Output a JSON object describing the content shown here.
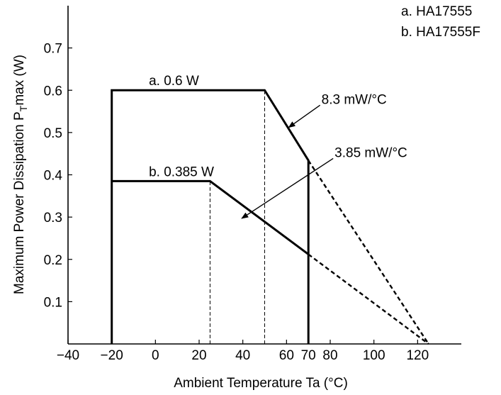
{
  "chart_data": {
    "type": "line",
    "xlabel": "Ambient Temperature  Ta  (°C)",
    "ylabel_main": "Maximum Power Dissipation  P",
    "ylabel_sub": "T",
    "ylabel_tail": "max  (W)",
    "xlim": [
      -40,
      140
    ],
    "ylim": [
      0,
      0.8
    ],
    "x_ticks": [
      -40,
      -20,
      0,
      20,
      40,
      60,
      70,
      80,
      100,
      120
    ],
    "x_tick_labels": [
      "−40",
      "−20",
      "0",
      "20",
      "40",
      "60",
      "70",
      "80",
      "100",
      "120"
    ],
    "y_ticks": [
      0.1,
      0.2,
      0.3,
      0.4,
      0.5,
      0.6,
      0.7
    ],
    "y_tick_labels": [
      "0.1",
      "0.2",
      "0.3",
      "0.4",
      "0.5",
      "0.6",
      "0.7"
    ],
    "grid": false,
    "legend_position": "top-right",
    "legend": [
      "a. HA17555",
      "b. HA17555F"
    ],
    "series": [
      {
        "name": "a. HA17555",
        "points": [
          [
            -20,
            0
          ],
          [
            -20,
            0.6
          ],
          [
            50,
            0.6
          ],
          [
            70,
            0.434
          ],
          [
            70,
            0
          ]
        ],
        "extension": [
          [
            70,
            0.434
          ],
          [
            125,
            0
          ]
        ]
      },
      {
        "name": "b. HA17555F",
        "points": [
          [
            -20,
            0.385
          ],
          [
            25,
            0.385
          ],
          [
            70,
            0.212
          ]
        ],
        "extension": [
          [
            70,
            0.212
          ],
          [
            125,
            0
          ]
        ]
      }
    ],
    "reference_lines": [
      {
        "x": 50,
        "y_from": 0,
        "y_to": 0.6
      },
      {
        "x": 25,
        "y_from": 0,
        "y_to": 0.385
      }
    ],
    "annotations": [
      {
        "text": "a. 0.6 W",
        "x": -3,
        "y": 0.612
      },
      {
        "text": "b. 0.385 W",
        "x": -3,
        "y": 0.397
      },
      {
        "text": "8.3 mW/°C",
        "x": 76,
        "y": 0.568,
        "arrow_to": [
          61,
          0.512
        ]
      },
      {
        "text": "3.85 mW/°C",
        "x": 82,
        "y": 0.442,
        "arrow_to": [
          39.5,
          0.297
        ]
      }
    ]
  }
}
